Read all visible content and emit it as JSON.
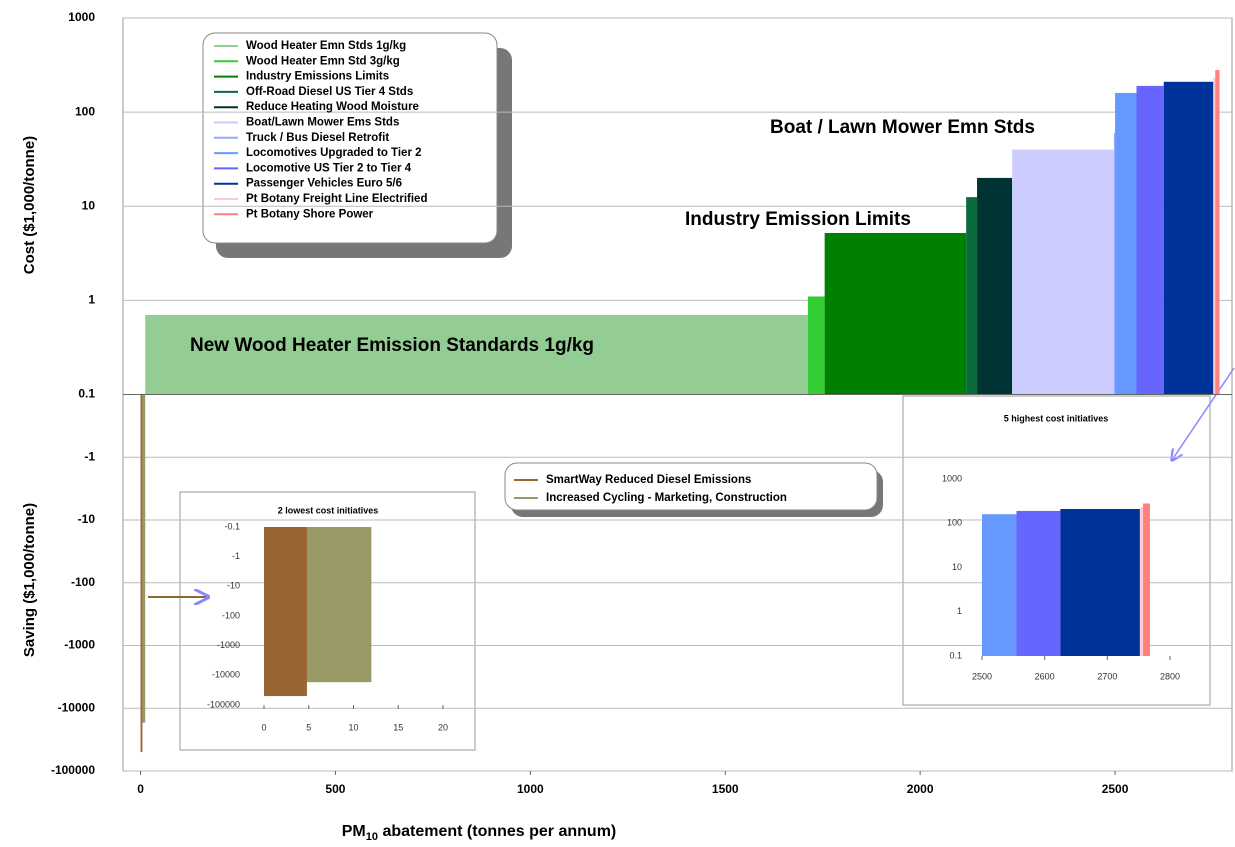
{
  "chart_data": [
    {
      "type": "bar",
      "y_labels": [
        "Cost ($1,000/tonne)",
        "Saving ($1,000/tonne)"
      ],
      "x_label": [
        "PM",
        "10",
        " abatement (tonnes per annum)"
      ],
      "annotations": [
        "New Wood Heater Emission Standards 1g/kg",
        "Industry Emission Limits",
        "Boat / Lawn Mower Emn Stds"
      ],
      "xlim": [
        -45,
        2800
      ],
      "xticks": [
        0,
        500,
        1000,
        1500,
        2000,
        2500
      ],
      "ylim": [
        -100000,
        1000
      ],
      "yticks": [
        1000,
        100,
        10,
        1,
        0.1,
        -1,
        -10,
        -100,
        -1000,
        -10000,
        -100000
      ],
      "yscale": "log",
      "grid": true,
      "cost_series": [
        {
          "name": "Wood Heater Emn Stds 1g/kg",
          "color": "#93cd93",
          "x0": 12,
          "x1": 1712,
          "value": 0.7
        },
        {
          "name": "Wood Heater Emn Std 3g/kg",
          "color": "#33cc33",
          "x0": 1712,
          "x1": 1755,
          "value": 1.1
        },
        {
          "name": "Industry Emissions Limits",
          "color": "#008000",
          "x0": 1755,
          "x1": 2118,
          "value": 5.2
        },
        {
          "name": "Off-Road Diesel US Tier 4 Stds",
          "color": "#0a6b3c",
          "x0": 2118,
          "x1": 2146,
          "value": 12.5
        },
        {
          "name": "Reduce Heating Wood Moisture",
          "color": "#003333",
          "x0": 2146,
          "x1": 2236,
          "value": 20
        },
        {
          "name": "Boat/Lawn Mower Ems Stds",
          "color": "#ccccff",
          "x0": 2236,
          "x1": 2497,
          "value": 40
        },
        {
          "name": "Truck / Bus Diesel Retrofit",
          "color": "#99aaff",
          "x0": 2497,
          "x1": 2500,
          "value": 60
        },
        {
          "name": "Locomotives Upgraded to Tier 2",
          "color": "#6699ff",
          "x0": 2500,
          "x1": 2555,
          "value": 160
        },
        {
          "name": "Locomotive US Tier 2  to Tier 4",
          "color": "#6666ff",
          "x0": 2555,
          "x1": 2625,
          "value": 190
        },
        {
          "name": "Passenger Vehicles Euro 5/6",
          "color": "#003399",
          "x0": 2625,
          "x1": 2752,
          "value": 210
        },
        {
          "name": "Pt Botany Freight Line Electrified",
          "color": "#ffcccc",
          "x0": 2752,
          "x1": 2757,
          "value": 230
        },
        {
          "name": "Pt Botany Shore Power",
          "color": "#ff8080",
          "x0": 2757,
          "x1": 2768,
          "value": 280
        }
      ],
      "saving_series": [
        {
          "name": "SmartWay Reduced Diesel Emissions",
          "color": "#996633",
          "x0": 0,
          "x1": 4.8,
          "value": -50000
        },
        {
          "name": "Increased Cycling - Marketing, Construction",
          "color": "#999966",
          "x0": 4.8,
          "x1": 12,
          "value": -17000
        }
      ]
    },
    {
      "type": "bar",
      "title": "2 lowest cost initiatives",
      "xlim": [
        0,
        20
      ],
      "xticks": [
        0,
        5,
        10,
        15,
        20
      ],
      "ylim": [
        -100000,
        -0.1
      ],
      "yticks": [
        -0.1,
        -1,
        -10,
        -100,
        -1000,
        -10000,
        -100000
      ],
      "yscale": "log",
      "series": [
        {
          "name": "SmartWay Reduced Diesel Emissions",
          "color": "#996633",
          "x0": 0,
          "x1": 4.8,
          "value": -50000
        },
        {
          "name": "Increased Cycling - Marketing, Construction",
          "color": "#999966",
          "x0": 4.8,
          "x1": 12,
          "value": -17000
        }
      ]
    },
    {
      "type": "bar",
      "title": "5 highest cost initiatives",
      "xlim": [
        2500,
        2800
      ],
      "xticks": [
        2500,
        2600,
        2700,
        2800
      ],
      "ylim": [
        0.1,
        1000
      ],
      "yticks": [
        1000,
        100,
        10,
        1,
        0.1
      ],
      "yscale": "log",
      "series": [
        {
          "name": "Locomotives Upgraded to Tier 2",
          "color": "#6699ff",
          "x0": 2500,
          "x1": 2555,
          "value": 160
        },
        {
          "name": "Locomotive US Tier 2  to Tier 4",
          "color": "#6666ff",
          "x0": 2555,
          "x1": 2625,
          "value": 190
        },
        {
          "name": "Passenger Vehicles Euro 5/6",
          "color": "#003399",
          "x0": 2625,
          "x1": 2752,
          "value": 210
        },
        {
          "name": "Pt Botany Freight Line Electrified",
          "color": "#ffcccc",
          "x0": 2752,
          "x1": 2757,
          "value": 230
        },
        {
          "name": "Pt Botany Shore Power",
          "color": "#ff8080",
          "x0": 2757,
          "x1": 2768,
          "value": 280
        }
      ]
    }
  ]
}
